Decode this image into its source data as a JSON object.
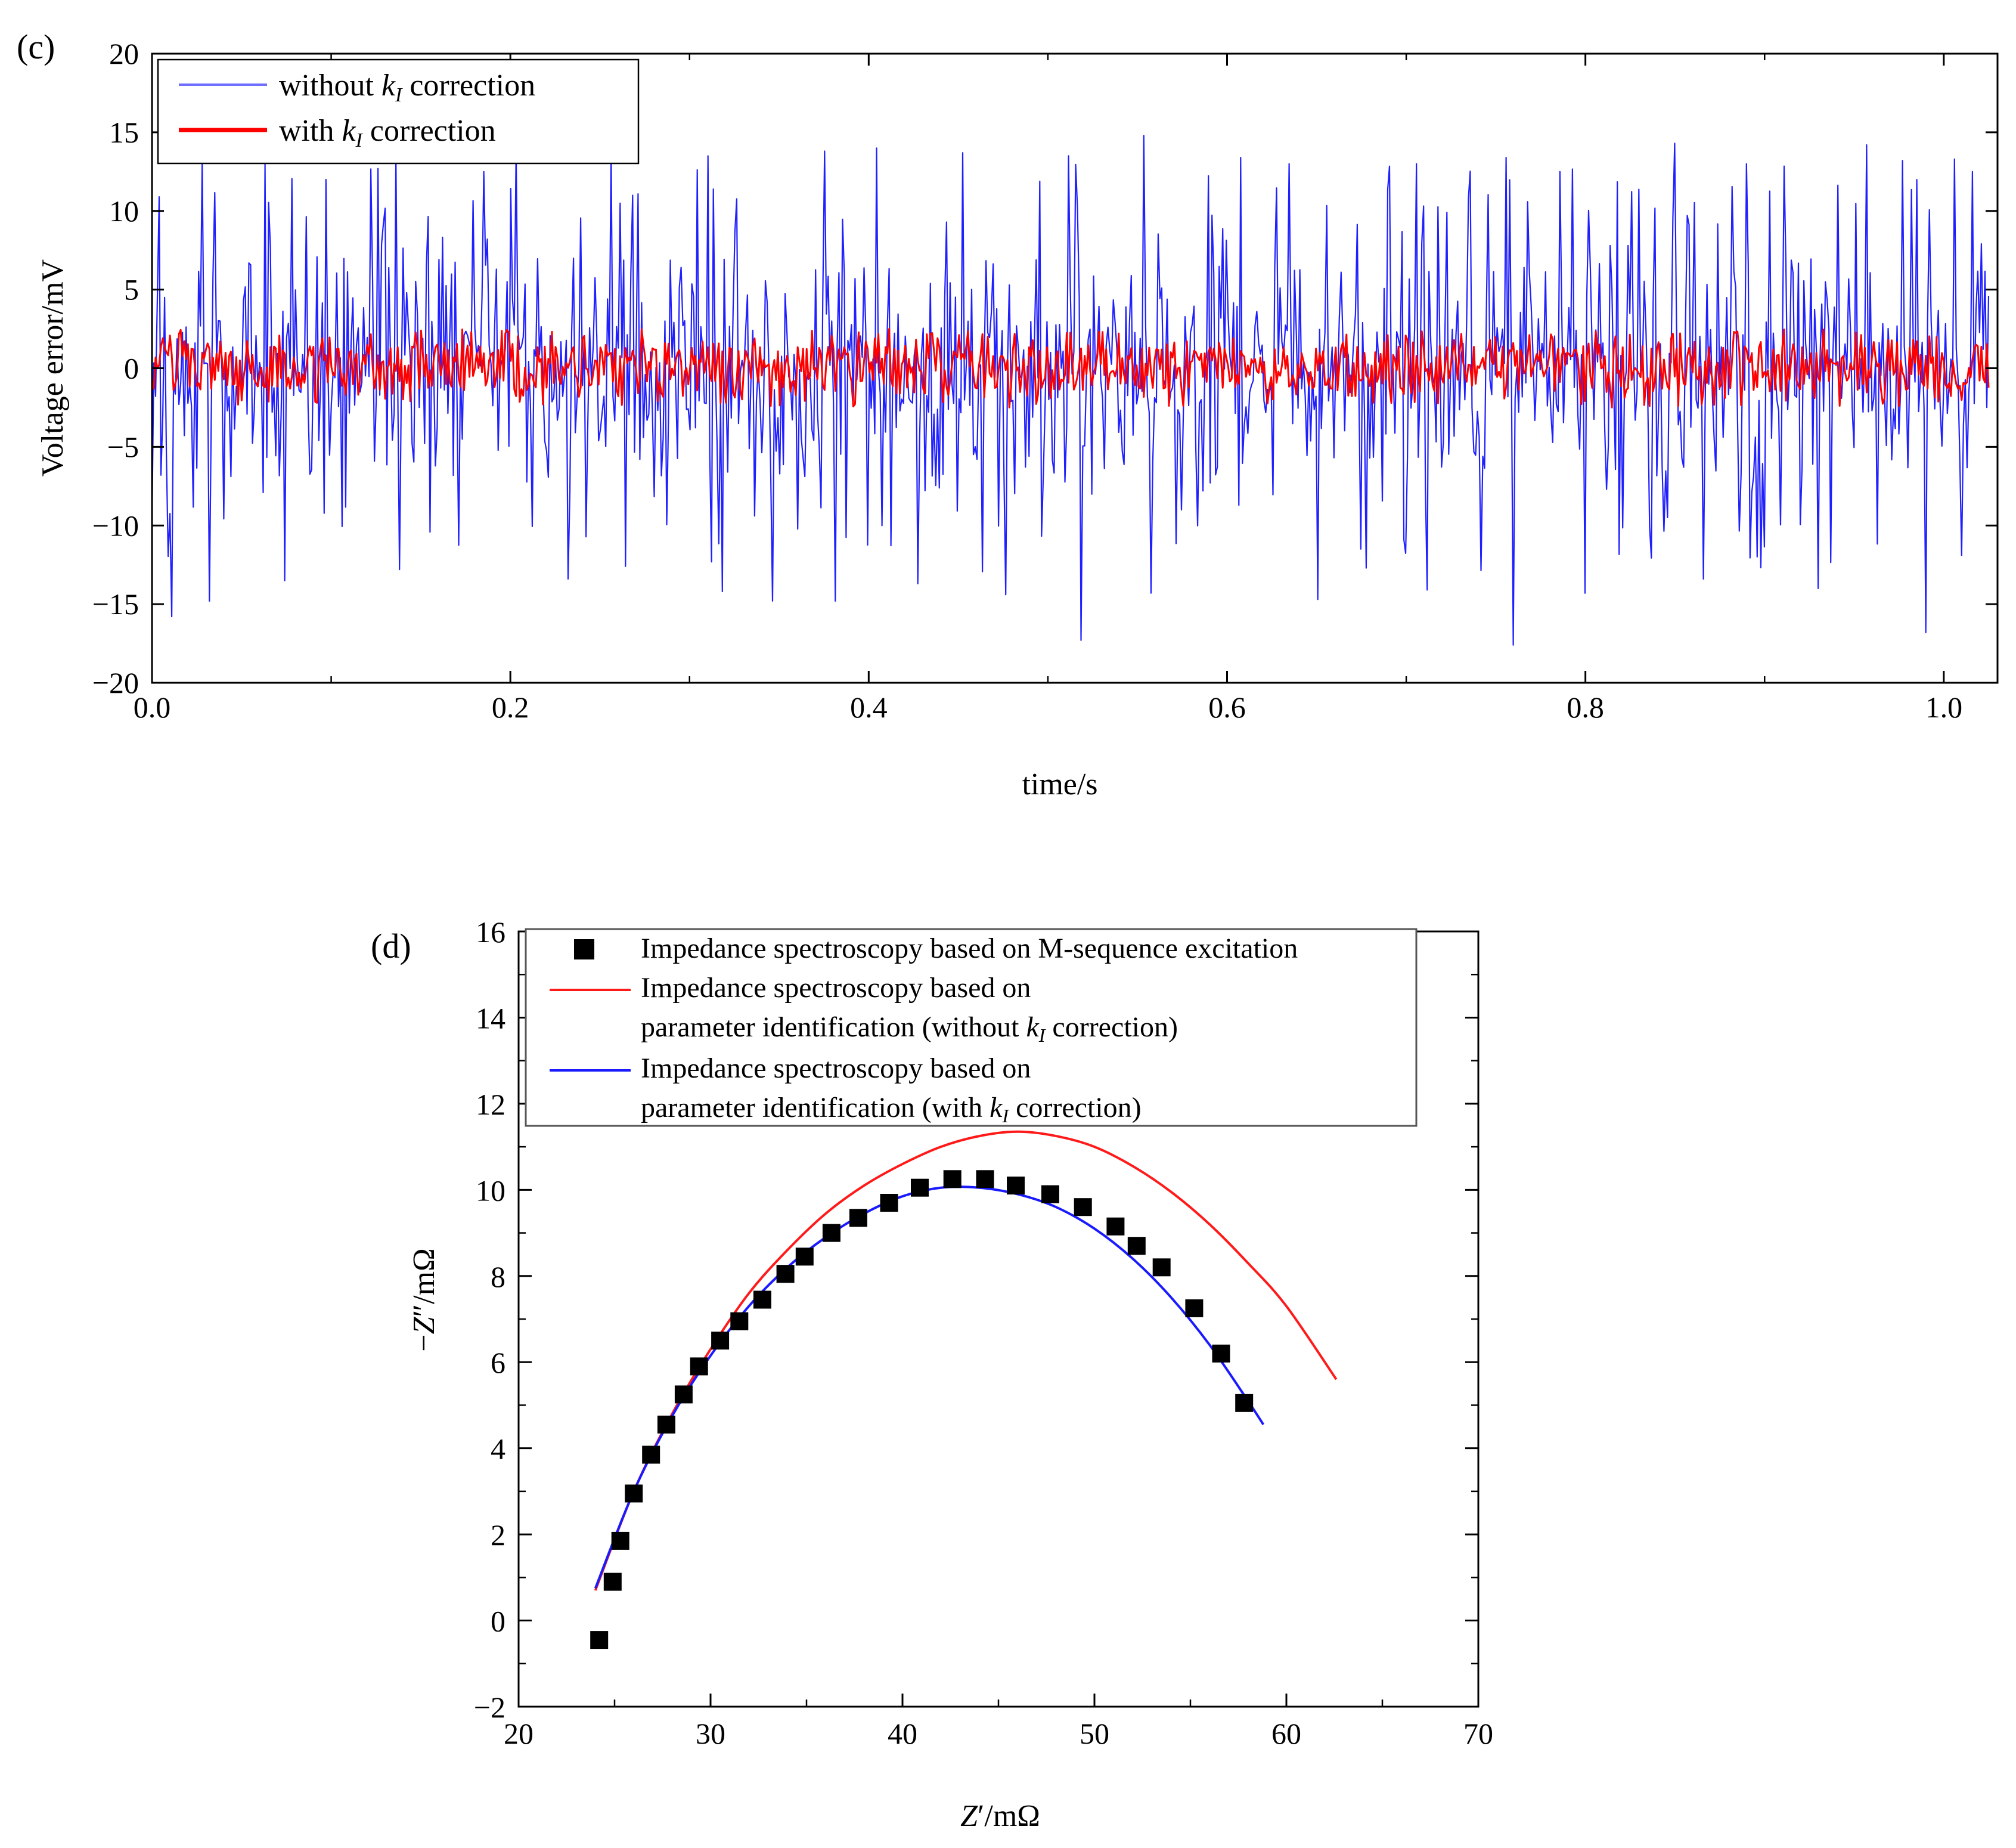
{
  "chart_data": [
    {
      "panel": "(c)",
      "type": "line",
      "xlabel": "time/s",
      "ylabel": "Voltage error/mV",
      "xlim": [
        0.0,
        1.03
      ],
      "ylim": [
        -20,
        20
      ],
      "xticks": [
        0.0,
        0.2,
        0.4,
        0.6,
        0.8,
        1.0
      ],
      "xtick_labels": [
        "0.0",
        "0.2",
        "0.4",
        "0.6",
        "0.8",
        "1.0"
      ],
      "yticks": [
        -20,
        -15,
        -10,
        -5,
        0,
        5,
        10,
        15,
        20
      ],
      "ytick_labels": [
        "−20",
        "−15",
        "−10",
        "−5",
        "0",
        "5",
        "10",
        "15",
        "20"
      ],
      "legend_position": "top-left",
      "series": [
        {
          "name": "without kI correction",
          "legend_prefix": "without ",
          "legend_symbol": "k",
          "legend_subscript": "I",
          "legend_suffix": " correction",
          "color": "#1f1fff",
          "x_range": [
            0.0,
            1.025
          ],
          "sample_count": 1025,
          "amplitude_range": [
            -17.6,
            14.8
          ],
          "envelope_peaks": [
            {
              "x": 0.003,
              "y": 4.5
            },
            {
              "x": 0.011,
              "y": -15.8
            },
            {
              "x": 0.028,
              "y": 13.3
            },
            {
              "x": 0.032,
              "y": -14.8
            },
            {
              "x": 0.063,
              "y": 13.0
            },
            {
              "x": 0.074,
              "y": -13.5
            },
            {
              "x": 0.097,
              "y": 12.0
            },
            {
              "x": 0.136,
              "y": 13.4
            },
            {
              "x": 0.138,
              "y": -12.8
            },
            {
              "x": 0.185,
              "y": 12.5
            },
            {
              "x": 0.203,
              "y": 13.8
            },
            {
              "x": 0.232,
              "y": -13.4
            },
            {
              "x": 0.256,
              "y": 13.8
            },
            {
              "x": 0.264,
              "y": -12.6
            },
            {
              "x": 0.31,
              "y": 13.5
            },
            {
              "x": 0.318,
              "y": -14.2
            },
            {
              "x": 0.346,
              "y": -14.8
            },
            {
              "x": 0.375,
              "y": 13.8
            },
            {
              "x": 0.381,
              "y": -14.8
            },
            {
              "x": 0.404,
              "y": 14.0
            },
            {
              "x": 0.427,
              "y": -13.7
            },
            {
              "x": 0.452,
              "y": 13.7
            },
            {
              "x": 0.476,
              "y": -14.4
            },
            {
              "x": 0.511,
              "y": 13.5
            },
            {
              "x": 0.519,
              "y": -17.3
            },
            {
              "x": 0.554,
              "y": 14.8
            },
            {
              "x": 0.558,
              "y": -14.3
            },
            {
              "x": 0.608,
              "y": 13.4
            },
            {
              "x": 0.635,
              "y": 13.0
            },
            {
              "x": 0.651,
              "y": -14.7
            },
            {
              "x": 0.706,
              "y": 13.0
            },
            {
              "x": 0.712,
              "y": -14.1
            },
            {
              "x": 0.756,
              "y": 13.4
            },
            {
              "x": 0.76,
              "y": -17.6
            },
            {
              "x": 0.786,
              "y": 12.5
            },
            {
              "x": 0.8,
              "y": -14.3
            },
            {
              "x": 0.85,
              "y": 14.3
            },
            {
              "x": 0.866,
              "y": -13.4
            },
            {
              "x": 0.89,
              "y": 13.0
            },
            {
              "x": 0.93,
              "y": -14.0
            },
            {
              "x": 0.957,
              "y": 14.2
            },
            {
              "x": 0.977,
              "y": 13.2
            },
            {
              "x": 0.99,
              "y": -16.8
            },
            {
              "x": 1.006,
              "y": 13.3
            },
            {
              "x": 1.016,
              "y": 12.5
            }
          ]
        },
        {
          "name": "with kI correction",
          "legend_prefix": "with ",
          "legend_symbol": "k",
          "legend_subscript": "I",
          "legend_suffix": " correction",
          "color": "#ff0000",
          "x_range": [
            0.0,
            1.025
          ],
          "sample_count": 1025,
          "amplitude_range": [
            -2.6,
            2.5
          ]
        }
      ]
    },
    {
      "panel": "(d)",
      "type": "scatter",
      "xlabel_symbol": "Z",
      "xlabel_unit": "′/mΩ",
      "ylabel_prefix": "−",
      "ylabel_symbol": "Z",
      "ylabel_unit": "″/mΩ",
      "xlim": [
        20,
        70
      ],
      "ylim": [
        -2,
        16
      ],
      "xticks": [
        20,
        30,
        40,
        50,
        60,
        70
      ],
      "xtick_labels": [
        "20",
        "30",
        "40",
        "50",
        "60",
        "70"
      ],
      "yticks": [
        -2,
        0,
        2,
        4,
        6,
        8,
        10,
        12,
        14,
        16
      ],
      "ytick_labels": [
        "−2",
        "0",
        "2",
        "4",
        "6",
        "8",
        "10",
        "12",
        "14",
        "16"
      ],
      "legend_position": "top",
      "legend": [
        {
          "marker": "square",
          "color": "#000000",
          "line1": "Impedance spectroscopy based on M-sequence excitation"
        },
        {
          "marker": "line",
          "color": "#ff1a1a",
          "line1": "Impedance spectroscopy based on",
          "line2_prefix": "parameter identification (without ",
          "line2_symbol": "k",
          "line2_subscript": "I",
          "line2_suffix": " correction)"
        },
        {
          "marker": "line",
          "color": "#1a1aff",
          "line1": "Impedance spectroscopy based on",
          "line2_prefix": "parameter identification (with ",
          "line2_symbol": "k",
          "line2_subscript": "I",
          "line2_suffix": " correction)"
        }
      ],
      "series": [
        {
          "name": "Impedance spectroscopy based on M-sequence excitation",
          "kind": "scatter",
          "color": "#000000",
          "points": [
            [
              24.2,
              -0.45
            ],
            [
              24.9,
              0.9
            ],
            [
              25.3,
              1.85
            ],
            [
              26.0,
              2.95
            ],
            [
              26.9,
              3.85
            ],
            [
              27.7,
              4.55
            ],
            [
              28.6,
              5.25
            ],
            [
              29.4,
              5.9
            ],
            [
              30.5,
              6.5
            ],
            [
              31.5,
              6.95
            ],
            [
              32.7,
              7.45
            ],
            [
              33.9,
              8.05
            ],
            [
              34.9,
              8.45
            ],
            [
              36.3,
              9.0
            ],
            [
              37.7,
              9.35
            ],
            [
              39.3,
              9.7
            ],
            [
              40.9,
              10.05
            ],
            [
              42.6,
              10.25
            ],
            [
              44.3,
              10.25
            ],
            [
              45.9,
              10.1
            ],
            [
              47.7,
              9.9
            ],
            [
              49.4,
              9.6
            ],
            [
              51.1,
              9.15
            ],
            [
              52.2,
              8.7
            ],
            [
              53.5,
              8.2
            ],
            [
              55.2,
              7.25
            ],
            [
              56.6,
              6.2
            ],
            [
              57.8,
              5.05
            ]
          ]
        },
        {
          "name": "Impedance spectroscopy based on parameter identification (without kI correction)",
          "kind": "line",
          "color": "#ff1a1a",
          "points": [
            [
              24.0,
              0.7
            ],
            [
              26.0,
              3.0
            ],
            [
              28.0,
              4.8
            ],
            [
              30.0,
              6.3
            ],
            [
              32.0,
              7.6
            ],
            [
              34.0,
              8.6
            ],
            [
              36.0,
              9.45
            ],
            [
              38.0,
              10.1
            ],
            [
              40.0,
              10.6
            ],
            [
              42.0,
              11.0
            ],
            [
              44.0,
              11.25
            ],
            [
              46.0,
              11.35
            ],
            [
              48.0,
              11.25
            ],
            [
              50.0,
              11.0
            ],
            [
              52.0,
              10.55
            ],
            [
              54.0,
              9.95
            ],
            [
              56.0,
              9.2
            ],
            [
              58.0,
              8.3
            ],
            [
              60.0,
              7.3
            ],
            [
              62.6,
              5.6
            ]
          ]
        },
        {
          "name": "Impedance spectroscopy based on parameter identification (with kI correction)",
          "kind": "line",
          "color": "#1a1aff",
          "points": [
            [
              24.0,
              0.75
            ],
            [
              26.0,
              3.0
            ],
            [
              28.0,
              4.75
            ],
            [
              30.0,
              6.15
            ],
            [
              32.0,
              7.3
            ],
            [
              34.0,
              8.2
            ],
            [
              36.0,
              8.9
            ],
            [
              38.0,
              9.45
            ],
            [
              40.0,
              9.85
            ],
            [
              42.0,
              10.05
            ],
            [
              44.0,
              10.05
            ],
            [
              46.0,
              9.9
            ],
            [
              48.0,
              9.6
            ],
            [
              50.0,
              9.1
            ],
            [
              52.0,
              8.4
            ],
            [
              54.0,
              7.5
            ],
            [
              56.0,
              6.4
            ],
            [
              58.0,
              5.1
            ],
            [
              58.8,
              4.55
            ]
          ]
        }
      ]
    }
  ]
}
